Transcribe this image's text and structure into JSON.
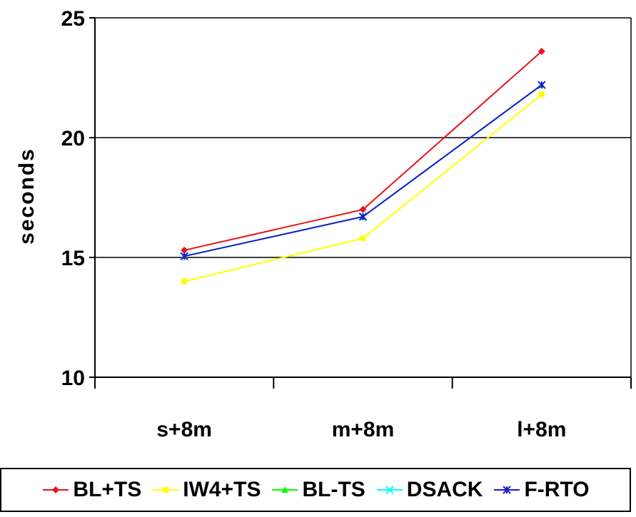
{
  "chart_data": {
    "type": "line",
    "categories": [
      "s+8m",
      "m+8m",
      "l+8m"
    ],
    "series": [
      {
        "name": "BL+TS",
        "color": "#e8141c",
        "marker": "diamond",
        "values": [
          15.3,
          17.0,
          23.6
        ]
      },
      {
        "name": "IW4+TS",
        "color": "#ffff00",
        "marker": "square",
        "values": [
          14.0,
          15.8,
          21.8
        ]
      },
      {
        "name": "BL-TS",
        "color": "#00ff00",
        "marker": "triangle",
        "values": [
          15.05,
          16.7,
          22.2
        ]
      },
      {
        "name": "DSACK",
        "color": "#00ffff",
        "marker": "x",
        "values": [
          15.05,
          16.7,
          22.2
        ]
      },
      {
        "name": "F-RTO",
        "color": "#1c1ccc",
        "marker": "star",
        "values": [
          15.05,
          16.7,
          22.2
        ]
      }
    ],
    "xlabel": "",
    "ylabel": "seconds",
    "ylim": [
      10,
      25
    ],
    "yticks": [
      10,
      15,
      20,
      25
    ],
    "grid": "horizontal",
    "legend_position": "bottom"
  }
}
